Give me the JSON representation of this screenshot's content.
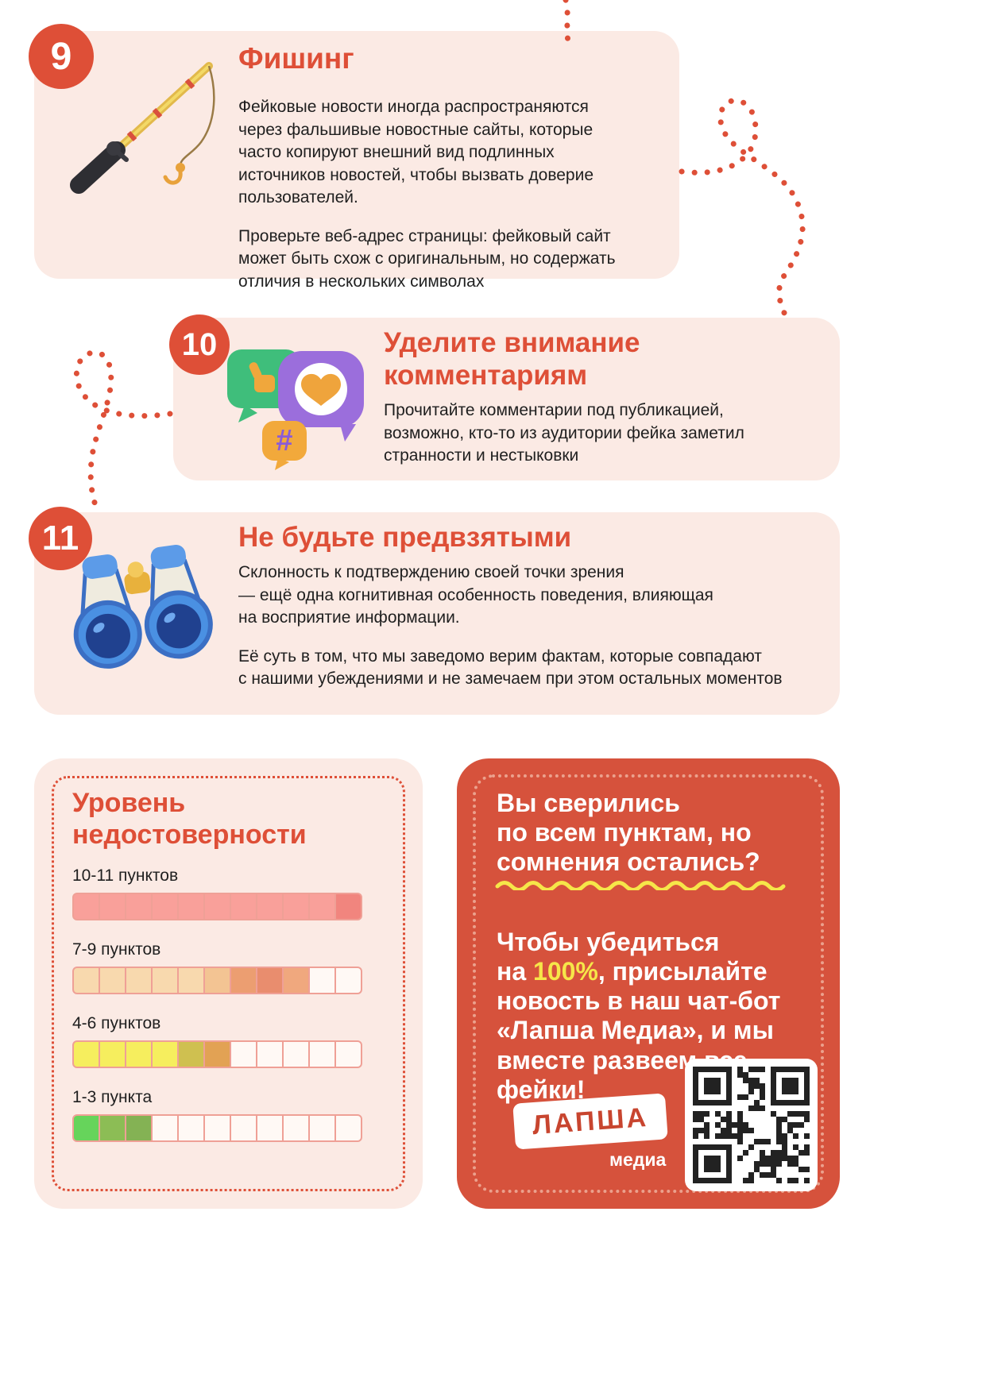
{
  "colors": {
    "accent": "#DE4F37",
    "card_bg": "#FBEAE4",
    "cta_bg": "#D6523C",
    "highlight_yellow": "#F6E649",
    "body_text": "#1F1F1F",
    "cell_border": "#EFA096"
  },
  "icons": {
    "section_9": "fishing-rod-icon",
    "section_10": "chat-reactions-icon",
    "section_11": "binoculars-icon",
    "cta": "qr-code-icon"
  },
  "sections": [
    {
      "number": "9",
      "title": "Фишинг",
      "paragraphs": [
        [
          "Фейковые новости иногда распространяются",
          "через фальшивые новостные сайты, которые",
          "часто копируют внешний вид подлинных",
          "источников новостей, чтобы вызвать доверие",
          "пользователей."
        ],
        [
          "Проверьте веб-адрес страницы: фейковый сайт",
          "может быть схож с оригинальным, но содержать",
          "отличия в нескольких символах"
        ]
      ]
    },
    {
      "number": "10",
      "title": [
        "Уделите внимание",
        "комментариям"
      ],
      "paragraphs": [
        [
          "Прочитайте комментарии под публикацией,",
          "возможно, кто-то из аудитории фейка заметил",
          "странности и нестыковки"
        ]
      ]
    },
    {
      "number": "11",
      "title": "Не будьте предвзятыми",
      "paragraphs": [
        [
          "Склонность к подтверждению своей точки зрения",
          "— ещё одна когнитивная особенность поведения, влияющая",
          "на восприятие информации."
        ],
        [
          "Её суть в том, что мы заведомо верим фактам, которые совпадают",
          "с нашими убеждениями и не замечаем при этом остальных моментов"
        ]
      ]
    }
  ],
  "scale": {
    "title_lines": [
      "Уровень",
      "недостоверности"
    ],
    "rows": [
      {
        "label": "10-11 пунктов",
        "cells": [
          "#F9A09A",
          "#F9A09A",
          "#F9A09A",
          "#F9A09A",
          "#F9A09A",
          "#F9A09A",
          "#F9A09A",
          "#F9A09A",
          "#F9A09A",
          "#F9A09A",
          "#F1857E"
        ]
      },
      {
        "label": "7-9 пунктов",
        "cells": [
          "#F8D9AE",
          "#F8D9AE",
          "#F8D9AE",
          "#F8D9AE",
          "#F8D9AE",
          "#F3C493",
          "#EC9E71",
          "#E98D6E",
          "#F0A87E",
          null,
          null
        ]
      },
      {
        "label": "4-6 пунктов",
        "cells": [
          "#F6EE5E",
          "#F6EE5E",
          "#F6EE5E",
          "#F6EE5E",
          "#CFC050",
          "#E2A254",
          null,
          null,
          null,
          null,
          null
        ]
      },
      {
        "label": "1-3 пункта",
        "cells": [
          "#66D45B",
          "#8CBD55",
          "#84B254",
          null,
          null,
          null,
          null,
          null,
          null,
          null,
          null
        ]
      }
    ]
  },
  "cta": {
    "heading_lines": [
      "Вы сверились",
      "по всем пунктам, но",
      "сомнения остались?"
    ],
    "body_before_lines": [
      "Чтобы убедиться",
      "на "
    ],
    "body_highlight": "100%",
    "body_after_lines": [
      ", присылайте",
      "новость в наш чат-бот",
      "«Лапша Медиа», и мы",
      "вместе развеем все",
      "фейки!"
    ],
    "logo_title": "ЛАПША",
    "logo_subtitle": "медиа"
  }
}
